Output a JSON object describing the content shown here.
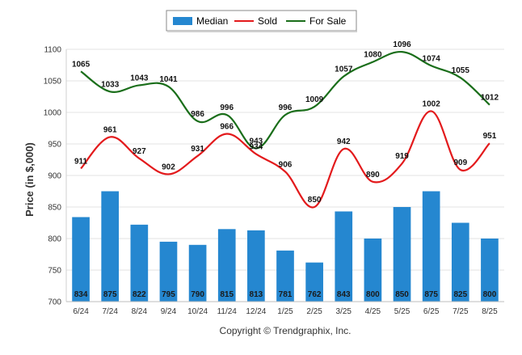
{
  "chart_data": {
    "type": "bar",
    "categories": [
      "6/24",
      "7/24",
      "8/24",
      "9/24",
      "10/24",
      "11/24",
      "12/24",
      "1/25",
      "2/25",
      "3/25",
      "4/25",
      "5/25",
      "6/25",
      "7/25",
      "8/25"
    ],
    "ylabel": "Price (in $,000)",
    "ylim": [
      700,
      1100
    ],
    "yticks": [
      700,
      750,
      800,
      850,
      900,
      950,
      1000,
      1050,
      1100
    ],
    "grid": true,
    "legend_position": "top-center",
    "series": [
      {
        "name": "Median",
        "type": "bar",
        "color": "#2587d0",
        "values": [
          834,
          875,
          822,
          795,
          790,
          815,
          813,
          781,
          762,
          843,
          800,
          850,
          875,
          825,
          800
        ]
      },
      {
        "name": "Sold",
        "type": "line",
        "color": "#e31a1c",
        "values": [
          911,
          961,
          927,
          902,
          931,
          966,
          934,
          906,
          850,
          942,
          890,
          919,
          1002,
          909,
          951
        ]
      },
      {
        "name": "For Sale",
        "type": "line",
        "color": "#1a6e1a",
        "values": [
          1065,
          1033,
          1043,
          1041,
          986,
          996,
          943,
          996,
          1009,
          1057,
          1080,
          1096,
          1074,
          1055,
          1012
        ]
      }
    ],
    "copyright": "Copyright © Trendgraphix, Inc."
  }
}
